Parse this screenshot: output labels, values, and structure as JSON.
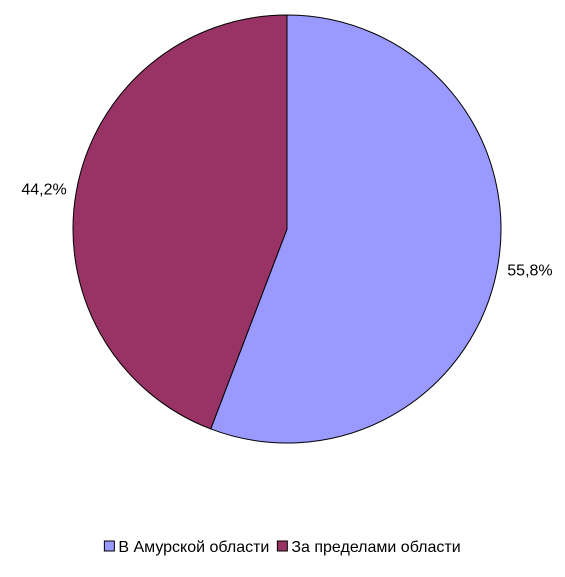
{
  "chart_data": {
    "type": "pie",
    "title": "",
    "categories": [
      "В Амурской области",
      "За пределами области"
    ],
    "values": [
      55.8,
      44.2
    ],
    "data_labels": [
      "55,8%",
      "44,2%"
    ],
    "colors": [
      "#9999FF",
      "#993366"
    ],
    "start_angle_deg": 0,
    "direction": "clockwise",
    "legend_position": "bottom"
  }
}
